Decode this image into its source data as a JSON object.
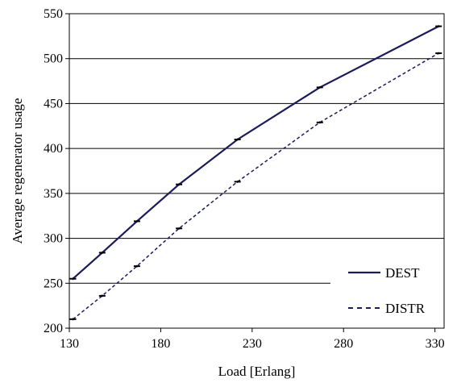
{
  "chart_data": {
    "type": "line",
    "title": "",
    "xlabel": "Load [Erlang]",
    "ylabel": "Average regenerator usage",
    "xlim": [
      130,
      335
    ],
    "ylim": [
      200,
      550
    ],
    "xticks": [
      130,
      180,
      230,
      280,
      330
    ],
    "yticks": [
      200,
      250,
      300,
      350,
      400,
      450,
      500,
      550
    ],
    "grid": "horizontal",
    "legend": "bottom-right",
    "error_bars": true,
    "series": [
      {
        "name": "DEST",
        "style": "solid",
        "color": "#1a1a5e",
        "x": [
          132,
          148,
          167,
          190,
          222,
          267,
          332
        ],
        "y": [
          255,
          284,
          319,
          360,
          410,
          468,
          536
        ]
      },
      {
        "name": "DISTR",
        "style": "dashed",
        "color": "#1a1a5e",
        "x": [
          132,
          148,
          167,
          190,
          222,
          267,
          332
        ],
        "y": [
          210,
          236,
          269,
          311,
          363,
          429,
          506
        ]
      }
    ]
  }
}
